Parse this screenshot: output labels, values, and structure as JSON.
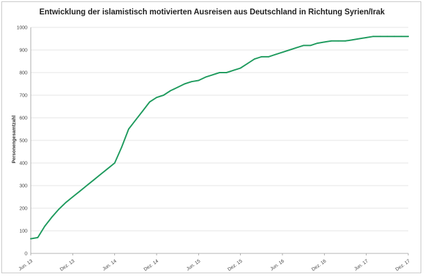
{
  "chart_data": {
    "type": "line",
    "title": "Entwicklung der islamistisch motivierten Ausreisen aus Deutschland in Richtung Syrien/Irak",
    "xlabel": "",
    "ylabel": "Personengesamtzahl",
    "ylim": [
      0,
      1000
    ],
    "yticks": [
      "0",
      "100",
      "200",
      "300",
      "400",
      "500",
      "600",
      "700",
      "800",
      "900",
      "1000"
    ],
    "xticks": [
      "Jun. 13",
      "Dez. 13",
      "Jun. 14",
      "Dez. 14",
      "Jun. 15",
      "Dez. 15",
      "Jun. 16",
      "Dez. 16",
      "Jun. 17",
      "Dez. 17"
    ],
    "grid": true,
    "color": "#1f9b5e",
    "x": [
      "2013-06",
      "2013-07",
      "2013-08",
      "2013-09",
      "2013-10",
      "2013-11",
      "2013-12",
      "2014-01",
      "2014-02",
      "2014-03",
      "2014-04",
      "2014-05",
      "2014-06",
      "2014-07",
      "2014-08",
      "2014-09",
      "2014-10",
      "2014-11",
      "2014-12",
      "2015-01",
      "2015-02",
      "2015-03",
      "2015-04",
      "2015-05",
      "2015-06",
      "2015-07",
      "2015-08",
      "2015-09",
      "2015-10",
      "2015-11",
      "2015-12",
      "2016-01",
      "2016-02",
      "2016-03",
      "2016-04",
      "2016-05",
      "2016-06",
      "2016-07",
      "2016-08",
      "2016-09",
      "2016-10",
      "2016-11",
      "2016-12",
      "2017-01",
      "2017-02",
      "2017-03",
      "2017-04",
      "2017-05",
      "2017-06",
      "2017-07",
      "2017-08",
      "2017-09",
      "2017-10",
      "2017-11",
      "2017-12"
    ],
    "values": [
      65,
      70,
      120,
      160,
      195,
      225,
      250,
      275,
      300,
      325,
      350,
      375,
      400,
      470,
      550,
      590,
      630,
      670,
      690,
      700,
      720,
      735,
      750,
      760,
      765,
      780,
      790,
      800,
      800,
      810,
      820,
      840,
      860,
      870,
      870,
      880,
      890,
      900,
      910,
      920,
      920,
      930,
      935,
      940,
      940,
      940,
      945,
      950,
      955,
      960,
      960,
      960,
      960,
      960,
      960
    ]
  }
}
